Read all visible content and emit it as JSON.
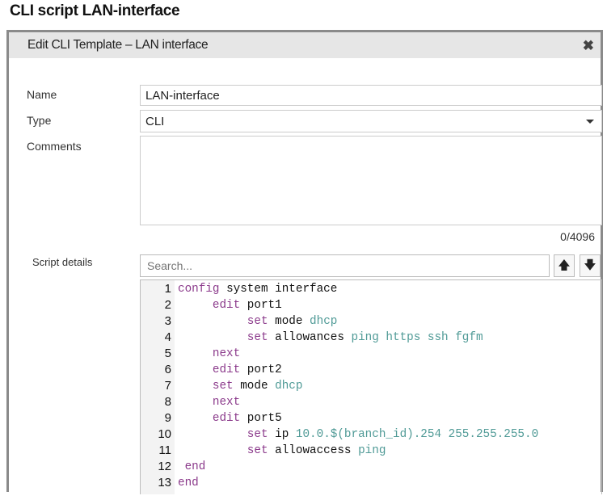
{
  "page_title": "CLI script LAN-interface",
  "dialog": {
    "title": "Edit CLI Template – LAN interface",
    "close_icon": "close-icon",
    "name_label": "Name",
    "name_value": "LAN-interface",
    "type_label": "Type",
    "type_value": "CLI",
    "comments_label": "Comments",
    "comments_value": "",
    "comments_counter": "0/4096",
    "script_label": "Script details",
    "search_placeholder": "Search...",
    "prev_icon": "arrow-up-icon",
    "next_icon": "arrow-down-icon"
  },
  "colors": {
    "keyword": "#8b3a8b",
    "value": "#4f9a96",
    "plain": "#111111"
  },
  "script_lines": [
    {
      "n": "1",
      "tokens": [
        [
          "kw",
          "config"
        ],
        [
          "pl",
          " system interface"
        ]
      ]
    },
    {
      "n": "2",
      "tokens": [
        [
          "kw",
          "     edit"
        ],
        [
          "pl",
          " port1"
        ]
      ]
    },
    {
      "n": "3",
      "tokens": [
        [
          "kw",
          "          set"
        ],
        [
          "pl",
          " mode "
        ],
        [
          "vl",
          "dhcp"
        ]
      ]
    },
    {
      "n": "4",
      "tokens": [
        [
          "kw",
          "          set"
        ],
        [
          "pl",
          " allowances "
        ],
        [
          "vl",
          "ping https ssh fgfm"
        ]
      ]
    },
    {
      "n": "5",
      "tokens": [
        [
          "kw",
          "     next"
        ]
      ]
    },
    {
      "n": "6",
      "tokens": [
        [
          "kw",
          "     edit"
        ],
        [
          "pl",
          " port2"
        ]
      ]
    },
    {
      "n": "7",
      "tokens": [
        [
          "kw",
          "     set"
        ],
        [
          "pl",
          " mode "
        ],
        [
          "vl",
          "dhcp"
        ]
      ]
    },
    {
      "n": "8",
      "tokens": [
        [
          "kw",
          "     next"
        ]
      ]
    },
    {
      "n": "9",
      "tokens": [
        [
          "kw",
          "     edit"
        ],
        [
          "pl",
          " port5"
        ]
      ]
    },
    {
      "n": "10",
      "tokens": [
        [
          "kw",
          "          set"
        ],
        [
          "pl",
          " ip "
        ],
        [
          "vl",
          "10.0.$(branch_id).254 255.255.255.0"
        ]
      ]
    },
    {
      "n": "11",
      "tokens": [
        [
          "kw",
          "          set"
        ],
        [
          "pl",
          " allowaccess "
        ],
        [
          "vl",
          "ping"
        ]
      ]
    },
    {
      "n": "12",
      "tokens": [
        [
          "kw",
          " end"
        ]
      ]
    },
    {
      "n": "13",
      "tokens": [
        [
          "kw",
          "end"
        ]
      ]
    }
  ]
}
